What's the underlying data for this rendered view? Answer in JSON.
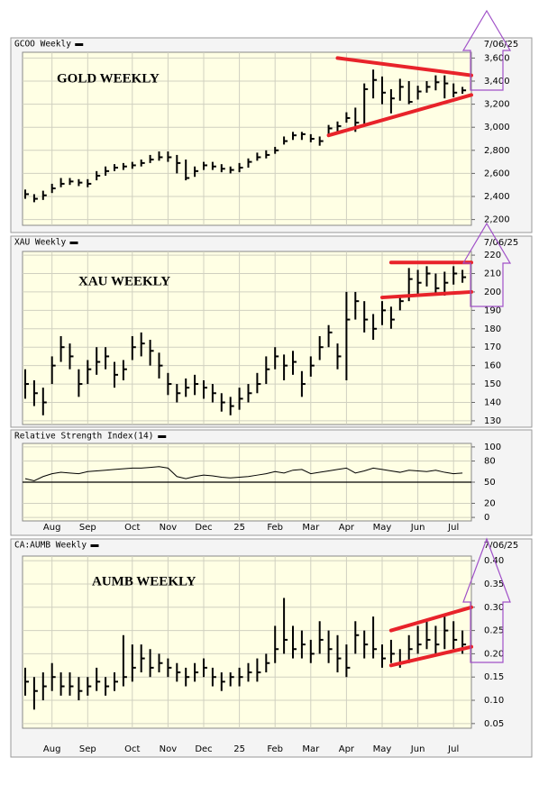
{
  "chart_data": [
    {
      "type": "ohlc",
      "title": "GCOO Weekly",
      "date": "7/06/25",
      "annotation": "GOLD WEEKLY",
      "color": "#000000",
      "trendline_color": "#e8232a",
      "grid": true,
      "ylim": [
        2150,
        3650
      ],
      "yticks": [
        {
          "value": 2200,
          "label": "2,200"
        },
        {
          "value": 2400,
          "label": "2,400"
        },
        {
          "value": 2600,
          "label": "2,600"
        },
        {
          "value": 2800,
          "label": "2,800"
        },
        {
          "value": 3000,
          "label": "3,000"
        },
        {
          "value": 3200,
          "label": "3,200"
        },
        {
          "value": 3400,
          "label": "3,400"
        },
        {
          "value": 3600,
          "label": "3,600"
        }
      ],
      "high": [
        2460,
        2420,
        2450,
        2510,
        2560,
        2560,
        2550,
        2550,
        2620,
        2660,
        2680,
        2690,
        2700,
        2720,
        2760,
        2790,
        2790,
        2760,
        2720,
        2660,
        2700,
        2700,
        2680,
        2660,
        2690,
        2730,
        2780,
        2800,
        2830,
        2920,
        2960,
        2960,
        2940,
        2920,
        3020,
        3050,
        3130,
        3170,
        3380,
        3500,
        3440,
        3330,
        3420,
        3400,
        3360,
        3400,
        3450,
        3450,
        3380,
        3350
      ],
      "low": [
        2380,
        2350,
        2370,
        2430,
        2480,
        2500,
        2490,
        2480,
        2540,
        2580,
        2620,
        2630,
        2640,
        2660,
        2690,
        2710,
        2700,
        2600,
        2540,
        2570,
        2630,
        2630,
        2610,
        2600,
        2610,
        2650,
        2710,
        2730,
        2770,
        2850,
        2890,
        2890,
        2870,
        2840,
        2930,
        2960,
        3040,
        2960,
        3020,
        3250,
        3200,
        3120,
        3230,
        3200,
        3240,
        3300,
        3320,
        3250,
        3260,
        3290
      ],
      "close": [
        2420,
        2380,
        2410,
        2470,
        2510,
        2530,
        2520,
        2510,
        2580,
        2620,
        2650,
        2660,
        2670,
        2690,
        2720,
        2740,
        2740,
        2690,
        2560,
        2620,
        2670,
        2660,
        2640,
        2630,
        2650,
        2700,
        2740,
        2760,
        2800,
        2880,
        2930,
        2940,
        2900,
        2880,
        2990,
        3010,
        3080,
        3040,
        3330,
        3410,
        3300,
        3250,
        3350,
        3220,
        3310,
        3350,
        3390,
        3380,
        3300,
        3320
      ],
      "trendlines": [
        {
          "x": [
            35,
            50
          ],
          "y": [
            3600,
            3450
          ]
        },
        {
          "x": [
            34,
            50
          ],
          "y": [
            2930,
            3280
          ]
        }
      ]
    },
    {
      "type": "ohlc",
      "title": "XAU Weekly",
      "date": "7/06/25",
      "annotation": "XAU WEEKLY",
      "color": "#000000",
      "trendline_color": "#e8232a",
      "grid": true,
      "ylim": [
        128,
        222
      ],
      "yticks": [
        130,
        140,
        150,
        160,
        170,
        180,
        190,
        200,
        210,
        220
      ],
      "high": [
        158,
        152,
        148,
        165,
        176,
        172,
        158,
        163,
        170,
        170,
        162,
        163,
        176,
        178,
        174,
        167,
        156,
        150,
        153,
        155,
        152,
        150,
        145,
        143,
        148,
        150,
        156,
        165,
        170,
        166,
        168,
        157,
        165,
        176,
        182,
        172,
        200,
        200,
        195,
        188,
        195,
        192,
        198,
        213,
        212,
        214,
        210,
        211,
        214,
        212
      ],
      "low": [
        142,
        138,
        133,
        150,
        162,
        158,
        143,
        150,
        155,
        158,
        148,
        152,
        163,
        165,
        160,
        153,
        144,
        140,
        143,
        144,
        142,
        140,
        135,
        133,
        136,
        140,
        145,
        150,
        158,
        152,
        155,
        143,
        154,
        163,
        170,
        158,
        152,
        185,
        178,
        174,
        182,
        180,
        190,
        195,
        198,
        203,
        198,
        198,
        204,
        205
      ],
      "close": [
        150,
        145,
        140,
        160,
        170,
        165,
        150,
        158,
        162,
        165,
        155,
        158,
        170,
        172,
        168,
        160,
        150,
        145,
        148,
        150,
        148,
        145,
        140,
        138,
        142,
        145,
        150,
        158,
        165,
        160,
        162,
        150,
        160,
        170,
        178,
        165,
        185,
        195,
        185,
        180,
        190,
        185,
        195,
        207,
        205,
        210,
        202,
        205,
        210,
        208
      ],
      "trendlines": [
        {
          "x": [
            41,
            50
          ],
          "y": [
            216,
            216
          ]
        },
        {
          "x": [
            40,
            50
          ],
          "y": [
            197,
            200
          ]
        }
      ]
    },
    {
      "type": "line",
      "title": "Relative Strength Index(14)",
      "color": "#000000",
      "grid": true,
      "reference_line": 50,
      "ylim": [
        -5,
        105
      ],
      "yticks": [
        0,
        20,
        50,
        80,
        100
      ],
      "categories": [
        null,
        null,
        null,
        "Aug",
        null,
        null,
        null,
        "Sep",
        null,
        null,
        null,
        null,
        "Oct",
        null,
        null,
        null,
        "Nov",
        null,
        null,
        null,
        "Dec",
        null,
        null,
        null,
        "25",
        null,
        null,
        null,
        "Feb",
        null,
        null,
        null,
        "Mar",
        null,
        null,
        null,
        "Apr",
        null,
        null,
        null,
        "May",
        null,
        null,
        null,
        "Jun",
        null,
        null,
        null,
        "Jul",
        null
      ],
      "values": [
        55,
        52,
        58,
        62,
        64,
        63,
        62,
        65,
        66,
        67,
        68,
        69,
        70,
        70,
        71,
        72,
        70,
        58,
        55,
        58,
        60,
        59,
        57,
        56,
        57,
        58,
        60,
        62,
        65,
        63,
        67,
        68,
        62,
        64,
        66,
        68,
        70,
        63,
        66,
        70,
        68,
        66,
        64,
        67,
        66,
        65,
        67,
        64,
        62,
        63
      ]
    },
    {
      "type": "ohlc",
      "title": "CA:AUMB Weekly",
      "date": "7/06/25",
      "annotation": "AUMB WEEKLY",
      "color": "#000000",
      "trendline_color": "#e8232a",
      "grid": true,
      "ylim": [
        0.04,
        0.41
      ],
      "yticks": [
        0.05,
        {
          "value": 0.1,
          "label": "0.10"
        },
        0.15,
        {
          "value": 0.2,
          "label": "0.20"
        },
        0.25,
        {
          "value": 0.3,
          "label": "0.30"
        },
        0.35,
        {
          "value": 0.4,
          "label": "0.40"
        }
      ],
      "categories": [
        null,
        null,
        null,
        "Aug",
        null,
        null,
        null,
        "Sep",
        null,
        null,
        null,
        null,
        "Oct",
        null,
        null,
        null,
        "Nov",
        null,
        null,
        null,
        "Dec",
        null,
        null,
        null,
        "25",
        null,
        null,
        null,
        "Feb",
        null,
        null,
        null,
        "Mar",
        null,
        null,
        null,
        "Apr",
        null,
        null,
        null,
        "May",
        null,
        null,
        null,
        "Jun",
        null,
        null,
        null,
        "Jul",
        null
      ],
      "high": [
        0.17,
        0.15,
        0.16,
        0.18,
        0.16,
        0.16,
        0.15,
        0.15,
        0.17,
        0.15,
        0.16,
        0.24,
        0.22,
        0.22,
        0.21,
        0.2,
        0.19,
        0.18,
        0.17,
        0.18,
        0.19,
        0.17,
        0.16,
        0.16,
        0.17,
        0.18,
        0.19,
        0.2,
        0.26,
        0.32,
        0.26,
        0.25,
        0.23,
        0.27,
        0.25,
        0.24,
        0.22,
        0.27,
        0.25,
        0.28,
        0.22,
        0.23,
        0.21,
        0.24,
        0.26,
        0.27,
        0.26,
        0.28,
        0.27,
        0.25
      ],
      "low": [
        0.11,
        0.08,
        0.1,
        0.12,
        0.11,
        0.11,
        0.1,
        0.11,
        0.12,
        0.11,
        0.12,
        0.13,
        0.14,
        0.16,
        0.15,
        0.16,
        0.15,
        0.14,
        0.13,
        0.14,
        0.15,
        0.13,
        0.12,
        0.13,
        0.13,
        0.14,
        0.14,
        0.16,
        0.18,
        0.2,
        0.19,
        0.19,
        0.18,
        0.2,
        0.18,
        0.16,
        0.15,
        0.2,
        0.19,
        0.19,
        0.17,
        0.18,
        0.17,
        0.18,
        0.2,
        0.21,
        0.2,
        0.21,
        0.21,
        0.2
      ],
      "close": [
        0.14,
        0.12,
        0.13,
        0.15,
        0.13,
        0.13,
        0.12,
        0.13,
        0.14,
        0.13,
        0.14,
        0.15,
        0.17,
        0.19,
        0.17,
        0.18,
        0.17,
        0.16,
        0.15,
        0.16,
        0.17,
        0.15,
        0.14,
        0.15,
        0.15,
        0.16,
        0.16,
        0.18,
        0.21,
        0.23,
        0.21,
        0.22,
        0.2,
        0.23,
        0.21,
        0.19,
        0.17,
        0.24,
        0.22,
        0.21,
        0.19,
        0.2,
        0.18,
        0.21,
        0.22,
        0.23,
        0.22,
        0.25,
        0.23,
        0.22
      ],
      "trendlines": [
        {
          "x": [
            41,
            50
          ],
          "y": [
            0.25,
            0.3
          ]
        },
        {
          "x": [
            41,
            50
          ],
          "y": [
            0.175,
            0.215
          ]
        }
      ]
    }
  ]
}
